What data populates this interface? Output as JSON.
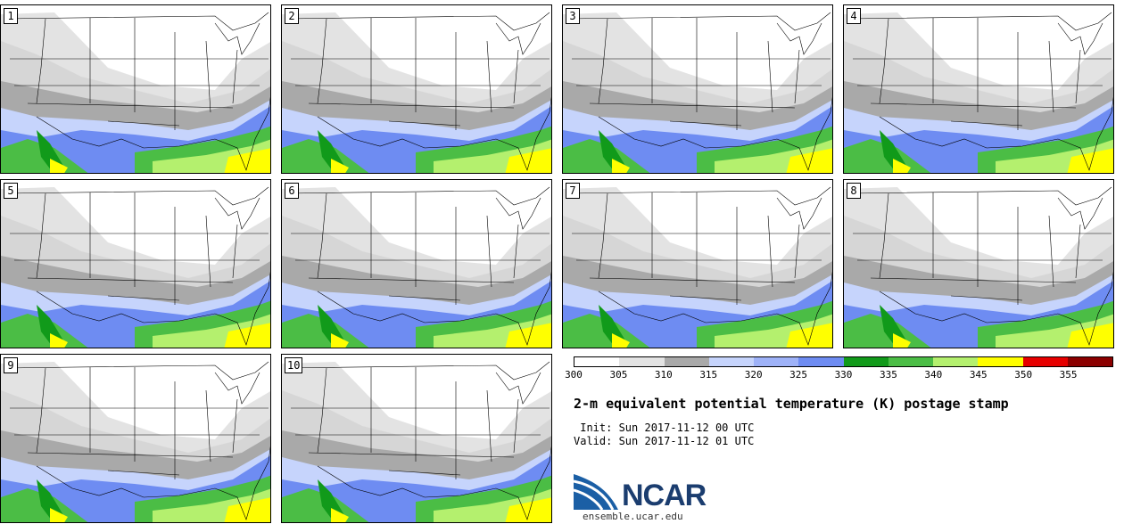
{
  "panels": [
    "1",
    "2",
    "3",
    "4",
    "5",
    "6",
    "7",
    "8",
    "9",
    "10"
  ],
  "colorbar": {
    "colors": [
      "#ffffff",
      "#e3e3e3",
      "#a9a9a9",
      "#c6d4fc",
      "#9eb2f8",
      "#6e8cf2",
      "#119a1a",
      "#4bbd45",
      "#b4f06e",
      "#ffff00",
      "#e60000",
      "#8b0000"
    ],
    "ticks": [
      "300",
      "305",
      "310",
      "315",
      "320",
      "325",
      "330",
      "335",
      "340",
      "345",
      "350",
      "355"
    ]
  },
  "title": "2-m equivalent potential temperature (K) postage stamp",
  "init": " Init: Sun 2017-11-12 00 UTC",
  "valid": "Valid: Sun 2017-11-12 01 UTC",
  "logo": {
    "text": "NCAR",
    "color": "#1b3d6f"
  },
  "site": "ensemble.ucar.edu"
}
